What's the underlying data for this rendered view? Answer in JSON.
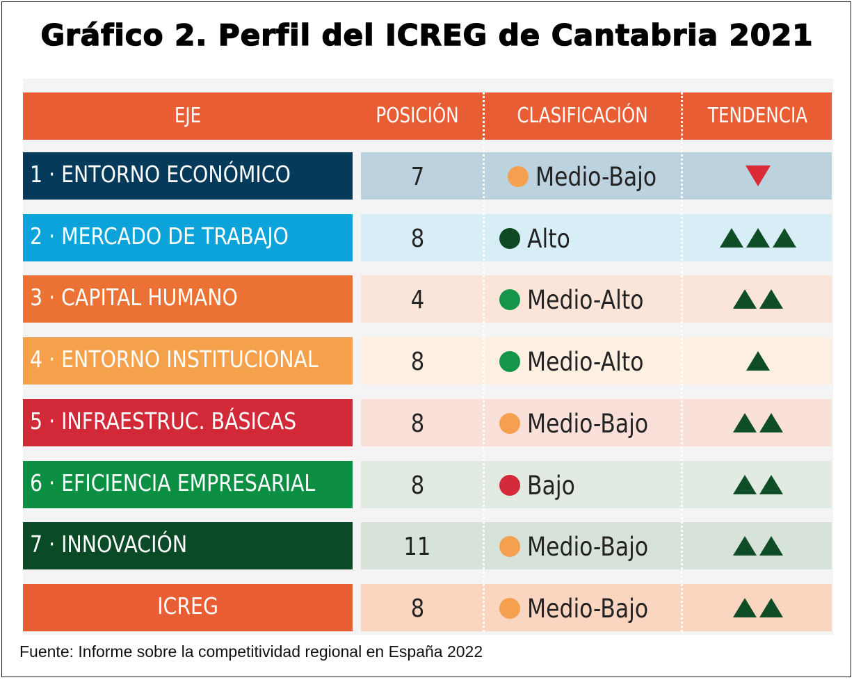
{
  "chart_data": {
    "type": "table",
    "title": "Gráfico 2. Perfil del ICREG de Cantabria 2021",
    "columns": [
      "EJE",
      "POSICIÓN",
      "CLASIFICACIÓN",
      "TENDENCIA"
    ],
    "rows": [
      {
        "eje": "1 · ENTORNO ECONÓMICO",
        "posicion": "7",
        "clasificacion": "Medio-Bajo",
        "tendencia": -1,
        "eje_color": "#063a5a",
        "row_bg": "#bcd2df",
        "dot_color": "#f5a04f"
      },
      {
        "eje": "2 ·  MERCADO DE TRABAJO",
        "posicion": "8",
        "clasificacion": "Alto",
        "tendencia": 3,
        "eje_color": "#0ba3d9",
        "row_bg": "#d7eef7",
        "dot_color": "#0d4a24"
      },
      {
        "eje": "3 · CAPITAL HUMANO",
        "posicion": "4",
        "clasificacion": "Medio-Alto",
        "tendencia": 2,
        "eje_color": "#ec7134",
        "row_bg": "#fbe5d8",
        "dot_color": "#14964a"
      },
      {
        "eje": "4 · ENTORNO INSTITUCIONAL",
        "posicion": "8",
        "clasificacion": "Medio-Alto",
        "tendencia": 1,
        "eje_color": "#f5a14c",
        "row_bg": "#fdf0e3",
        "dot_color": "#14964a"
      },
      {
        "eje": "5 · INFRAESTRUC. BÁSICAS",
        "posicion": "8",
        "clasificacion": "Medio-Bajo",
        "tendencia": 2,
        "eje_color": "#d22938",
        "row_bg": "#f9e1da",
        "dot_color": "#f5a04f"
      },
      {
        "eje": "6 · EFICIENCIA EMPRESARIAL",
        "posicion": "8",
        "clasificacion": "Bajo",
        "tendencia": 2,
        "eje_color": "#0d8f43",
        "row_bg": "#e1ebe1",
        "dot_color": "#d42a3a"
      },
      {
        "eje": "7 · INNOVACIÓN",
        "posicion": "11",
        "clasificacion": "Medio-Bajo",
        "tendencia": 2,
        "eje_color": "#0b4a26",
        "row_bg": "#d7e2d8",
        "dot_color": "#f5a04f"
      },
      {
        "eje": "ICREG",
        "posicion": "8",
        "clasificacion": "Medio-Bajo",
        "tendencia": 2,
        "eje_color": "#e85d33",
        "row_bg": "#fad5c0",
        "dot_color": "#f5a04f"
      }
    ]
  },
  "colors": {
    "header_bg": "#e85d33",
    "trend_up": "#0f4d27",
    "trend_down": "#d92a35"
  },
  "source": "Fuente: Informe sobre la competitividad regional en España 2022"
}
